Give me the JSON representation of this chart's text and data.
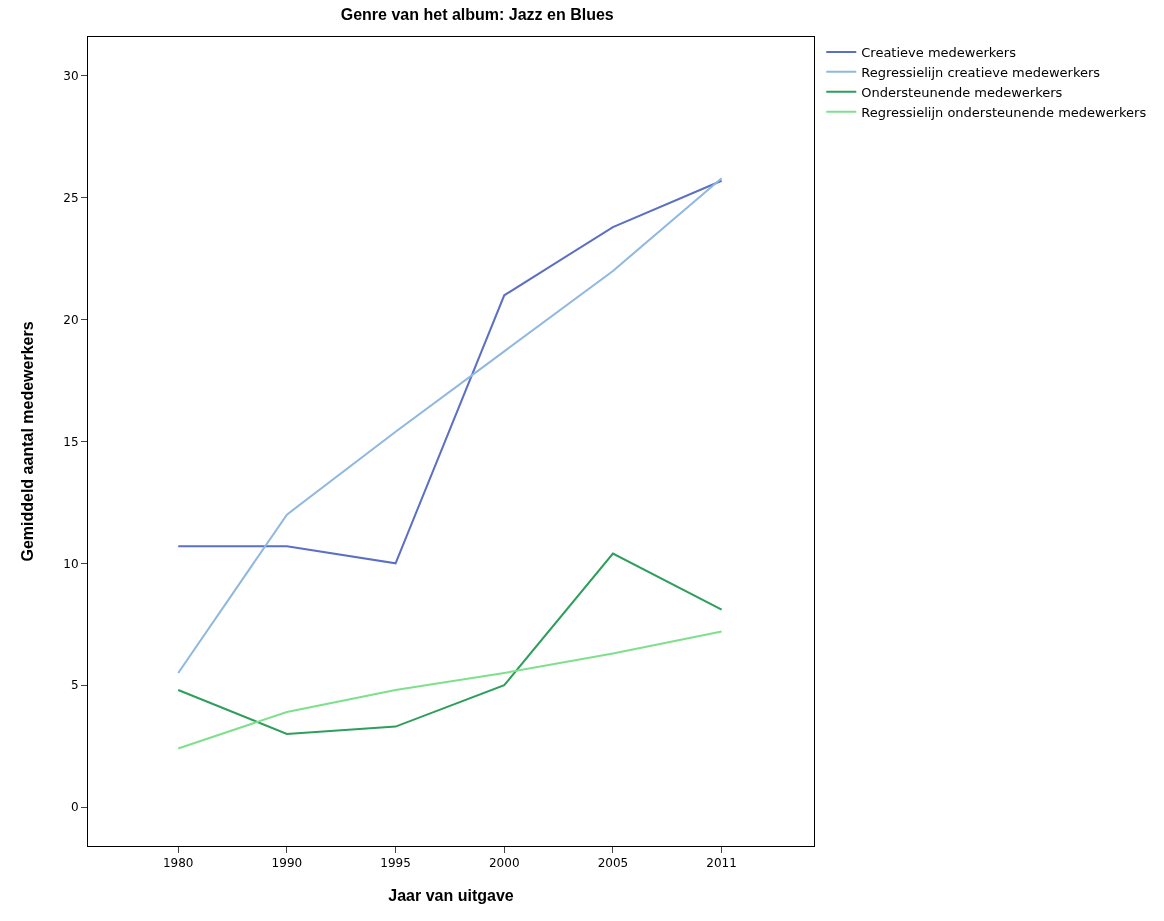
{
  "chart_data": {
    "type": "line",
    "title": "Genre van het album: Jazz en Blues",
    "xlabel": "Jaar van uitgave",
    "ylabel": "Gemiddeld aantal medewerkers",
    "categories": [
      "1980",
      "1990",
      "1995",
      "2000",
      "2005",
      "2011"
    ],
    "series": [
      {
        "name": "Creatieve medewerkers",
        "color": "#5b6fc4",
        "values": [
          10.7,
          10.7,
          10.0,
          21.0,
          23.8,
          25.7
        ]
      },
      {
        "name": "Regressielijn creatieve medewerkers",
        "color": "#8fb8e0",
        "values": [
          5.5,
          12.0,
          15.4,
          18.7,
          22.0,
          25.8
        ]
      },
      {
        "name": "Ondersteunende medewerkers",
        "color": "#2e9e5b",
        "values": [
          4.8,
          3.0,
          3.3,
          5.0,
          10.4,
          8.1
        ]
      },
      {
        "name": "Regressielijn ondersteunende medewerkers",
        "color": "#7ee08c",
        "values": [
          2.4,
          3.9,
          4.8,
          5.5,
          6.3,
          7.2
        ]
      }
    ],
    "ylim": [
      -1.6,
      31.6
    ],
    "yticks": [
      0,
      5,
      10,
      15,
      20,
      25,
      30
    ],
    "grid": false,
    "legend": "top right",
    "marker": "none",
    "line_style": "solid"
  }
}
